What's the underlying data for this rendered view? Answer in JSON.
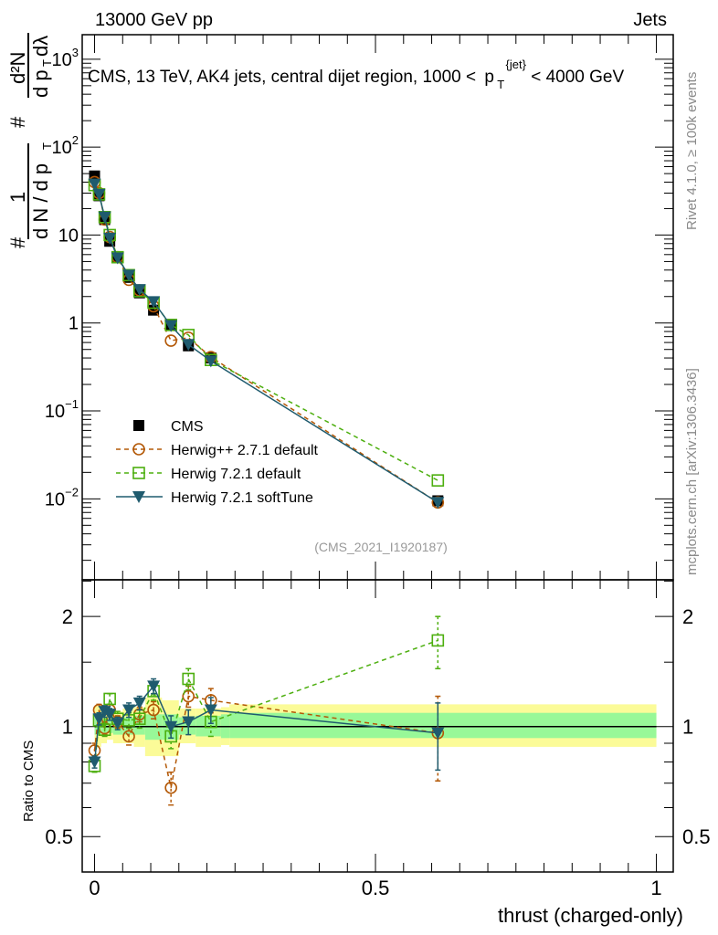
{
  "header": {
    "left": "13000 GeV pp",
    "right": "Jets"
  },
  "side": {
    "rivet": "Rivet 4.1.0, ≥ 100k events",
    "mcplots": "mcplots.cern.ch [arXiv:1306.3436]"
  },
  "analysis_id": "(CMS_2021_I1920187)",
  "title_parts": {
    "pre": "CMS, 13 TeV, AK4 jets, central dijet region, 1000 <",
    "p": "p",
    "sub": "T",
    "sup": "{jet}",
    "post": "< 4000 GeV"
  },
  "colors": {
    "cms": "#000000",
    "herwigpp": "#b35806",
    "h721": "#4daf0f",
    "soft": "#1f5b6e",
    "band_green": "#98f898",
    "band_yellow": "#fbfb98"
  },
  "chart_data": [
    {
      "type": "scatter",
      "panel": "main",
      "xlabel": "thrust (charged-only)",
      "ylabel": "1/N dN/dp_T  d²N/(dp_T dλ)",
      "ylabel_parts": {
        "hash1": "#",
        "one": "1",
        "den": "d N / d p",
        "T": "T",
        "hash2": "#",
        "num": "d²N",
        "den2": "d p",
        "den2b": "dλ"
      },
      "yscale": "log",
      "ylim": [
        0.0012,
        1900
      ],
      "xlim": [
        -0.022,
        1.03
      ],
      "ytick_labels": [
        {
          "v": 1000,
          "base": "10",
          "exp": "3"
        },
        {
          "v": 100,
          "base": "10",
          "exp": "2"
        },
        {
          "v": 10,
          "base": "10",
          "exp": ""
        },
        {
          "v": 1,
          "base": "1",
          "exp": ""
        },
        {
          "v": 0.1,
          "base": "10",
          "exp": "−1"
        },
        {
          "v": 0.01,
          "base": "10",
          "exp": "−2"
        }
      ],
      "legend_position": "lower-left",
      "x": [
        0.0,
        0.008,
        0.018,
        0.027,
        0.041,
        0.061,
        0.08,
        0.105,
        0.136,
        0.167,
        0.207,
        0.611
      ],
      "series": [
        {
          "name": "CMS",
          "key": "cms",
          "marker": "square-filled",
          "line": "none",
          "values": [
            47,
            28,
            15,
            8.5,
            5.5,
            3.3,
            2.2,
            1.4,
            0.95,
            0.55,
            0.4,
            0.0095
          ]
        },
        {
          "name": "Herwig++ 2.7.1 default",
          "key": "herwigpp",
          "marker": "circle-open",
          "line": "dashed",
          "values": [
            40,
            30,
            15,
            9.5,
            5.6,
            3.1,
            2.35,
            1.55,
            0.63,
            0.68,
            0.41,
            0.0091
          ]
        },
        {
          "name": "Herwig 7.2.1 default",
          "key": "h721",
          "marker": "square-open",
          "line": "dashed",
          "values": [
            37,
            29,
            16,
            10,
            5.6,
            3.5,
            2.3,
            1.7,
            0.95,
            0.73,
            0.38,
            0.0162
          ]
        },
        {
          "name": "Herwig 7.2.1 softTune",
          "key": "soft",
          "marker": "triangle-down-filled",
          "line": "solid",
          "values": [
            38,
            29,
            16,
            9.2,
            5.5,
            3.5,
            2.4,
            1.75,
            0.93,
            0.57,
            0.37,
            0.0091
          ]
        }
      ]
    },
    {
      "type": "scatter",
      "panel": "ratio",
      "ylabel": "Ratio to CMS",
      "yscale": "log",
      "ylim": [
        0.4,
        2.52
      ],
      "xticks": [
        {
          "v": 0,
          "label": "0"
        },
        {
          "v": 0.5,
          "label": "0.5"
        },
        {
          "v": 1,
          "label": "1"
        }
      ],
      "yticks": [
        {
          "v": 2,
          "label": "2"
        },
        {
          "v": 1,
          "label": "1"
        },
        {
          "v": 0.5,
          "label": "0.5"
        }
      ],
      "band_edges": [
        0,
        0.004,
        0.012,
        0.022,
        0.033,
        0.05,
        0.07,
        0.09,
        0.12,
        0.15,
        0.18,
        0.225,
        0.24,
        1.0
      ],
      "band_yellow": [
        [
          0.88,
          1.14
        ],
        [
          0.88,
          1.14
        ],
        [
          0.9,
          1.12
        ],
        [
          0.92,
          1.1
        ],
        [
          0.9,
          1.1
        ],
        [
          0.9,
          1.12
        ],
        [
          0.88,
          1.13
        ],
        [
          0.83,
          1.2
        ],
        [
          0.83,
          1.18
        ],
        [
          0.9,
          1.12
        ],
        [
          0.88,
          1.12
        ],
        [
          0.89,
          1.13
        ],
        [
          0.88,
          1.15
        ]
      ],
      "band_green": [
        [
          0.95,
          1.06
        ],
        [
          0.95,
          1.06
        ],
        [
          0.96,
          1.05
        ],
        [
          0.96,
          1.05
        ],
        [
          0.95,
          1.06
        ],
        [
          0.95,
          1.06
        ],
        [
          0.95,
          1.07
        ],
        [
          0.92,
          1.08
        ],
        [
          0.92,
          1.08
        ],
        [
          0.95,
          1.06
        ],
        [
          0.94,
          1.07
        ],
        [
          0.93,
          1.08
        ],
        [
          0.93,
          1.09
        ]
      ],
      "series": [
        {
          "key": "herwigpp",
          "values": [
            0.86,
            1.11,
            0.99,
            1.11,
            1.03,
            0.94,
            1.08,
            1.11,
            0.68,
            1.21,
            1.18,
            0.96
          ],
          "errors": [
            0.04,
            0.04,
            0.04,
            0.04,
            0.04,
            0.05,
            0.05,
            0.06,
            0.07,
            0.08,
            0.09,
            0.25
          ]
        },
        {
          "key": "h721",
          "values": [
            0.78,
            1.04,
            0.98,
            1.19,
            1.05,
            1.04,
            1.05,
            1.25,
            0.94,
            1.35,
            1.03,
            1.72
          ],
          "errors": [
            0.03,
            0.04,
            0.04,
            0.04,
            0.05,
            0.05,
            0.06,
            0.07,
            0.07,
            0.09,
            0.09,
            0.28
          ]
        },
        {
          "key": "soft",
          "values": [
            0.8,
            1.05,
            1.1,
            1.08,
            1.02,
            1.11,
            1.16,
            1.29,
            1.0,
            1.03,
            1.11,
            0.96
          ],
          "errors": [
            0.03,
            0.04,
            0.04,
            0.04,
            0.04,
            0.05,
            0.05,
            0.06,
            0.07,
            0.08,
            0.09,
            0.2
          ]
        }
      ]
    }
  ]
}
